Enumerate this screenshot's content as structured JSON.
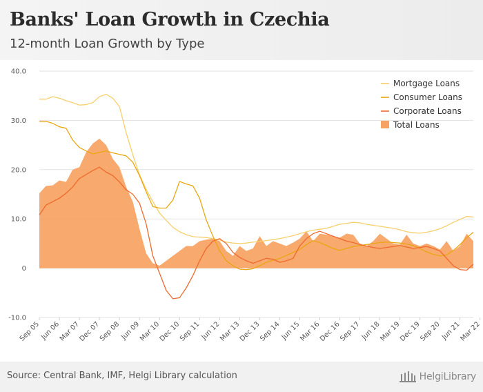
{
  "header": {
    "title": "Banks' Loan Growth in Czechia",
    "subtitle": "12-month Loan Growth by Type"
  },
  "footer": {
    "source": "Source: Central Bank, IMF, Helgi Library calculation",
    "logo_text": "HelgiLibrary",
    "logo_icon": "library-columns-icon"
  },
  "colors": {
    "mortgage": "#f7cf6a",
    "consumer": "#eaa611",
    "corporate": "#ee6a2c",
    "total": "#f6a262",
    "grid": "#e2e2e2",
    "axis_text": "#555555"
  },
  "chart_data": {
    "type": "line",
    "title": "Banks' Loan Growth in Czechia",
    "subtitle": "12-month Loan Growth by Type",
    "xlabel": "",
    "ylabel": "",
    "ylim": [
      -10,
      40
    ],
    "yticks": [
      40,
      30,
      20,
      10,
      0,
      -10
    ],
    "ytick_labels": [
      "40.0",
      "30.0",
      "20.0",
      "10.0",
      "0",
      "-10.0"
    ],
    "grid": true,
    "legend_position": "top-right",
    "x_tick_labels": [
      "Sep 05",
      "Jun 06",
      "Mar 07",
      "Dec 07",
      "Sep 08",
      "Jun 09",
      "Mar 10",
      "Dec 10",
      "Sep 11",
      "Jun 12",
      "Mar 13",
      "Dec 13",
      "Sep 14",
      "Jun 15",
      "Mar 16",
      "Dec 16",
      "Sep 17",
      "Jun 18",
      "Mar 19",
      "Dec 19",
      "Sep 20",
      "Jun 21",
      "Mar 22"
    ],
    "x_step_per_tick": 3,
    "series": [
      {
        "name": "Mortgage Loans",
        "kind": "line",
        "color": "#f7cf6a",
        "values": [
          34.3,
          34.3,
          34.8,
          34.5,
          34.0,
          33.6,
          33.1,
          33.2,
          33.6,
          34.8,
          35.3,
          34.5,
          32.8,
          27.5,
          23.0,
          19.0,
          16.0,
          13.5,
          11.2,
          9.7,
          8.3,
          7.4,
          6.8,
          6.4,
          6.3,
          6.2,
          6.0,
          5.7,
          5.3,
          5.1,
          5.0,
          5.1,
          5.3,
          5.4,
          5.6,
          5.8,
          6.0,
          6.3,
          6.6,
          7.0,
          7.4,
          7.7,
          7.9,
          8.1,
          8.5,
          8.9,
          9.1,
          9.3,
          9.2,
          8.9,
          8.7,
          8.5,
          8.3,
          8.1,
          7.8,
          7.4,
          7.2,
          7.1,
          7.3,
          7.6,
          8.0,
          8.6,
          9.3,
          9.9,
          10.5,
          10.4
        ]
      },
      {
        "name": "Consumer Loans",
        "kind": "line",
        "color": "#eaa611",
        "values": [
          29.8,
          29.8,
          29.4,
          28.7,
          28.4,
          26.0,
          24.5,
          23.8,
          23.2,
          23.5,
          23.8,
          23.4,
          23.1,
          22.8,
          21.5,
          18.8,
          15.5,
          12.5,
          12.2,
          12.2,
          13.8,
          17.6,
          17.1,
          16.7,
          14.2,
          9.8,
          6.5,
          3.5,
          1.5,
          0.5,
          -0.2,
          -0.3,
          -0.1,
          0.5,
          1.2,
          1.6,
          2.0,
          2.6,
          3.2,
          3.8,
          4.8,
          5.6,
          5.2,
          4.6,
          4.0,
          3.6,
          4.0,
          4.4,
          4.6,
          4.8,
          5.0,
          5.2,
          5.3,
          5.2,
          5.1,
          4.9,
          4.6,
          4.0,
          3.3,
          2.8,
          2.5,
          2.7,
          3.6,
          4.8,
          6.2,
          7.3
        ]
      },
      {
        "name": "Corporate Loans",
        "kind": "line",
        "color": "#ee6a2c",
        "values": [
          10.8,
          12.8,
          13.5,
          14.2,
          15.2,
          16.5,
          18.2,
          19.0,
          19.8,
          20.5,
          19.5,
          18.8,
          17.5,
          15.9,
          15.0,
          13.2,
          9.0,
          2.5,
          -1.0,
          -4.5,
          -6.2,
          -6.0,
          -4.0,
          -1.5,
          1.5,
          4.0,
          5.5,
          6.0,
          5.0,
          3.2,
          2.2,
          1.5,
          1.0,
          1.5,
          2.0,
          1.8,
          1.2,
          1.5,
          2.0,
          4.5,
          6.0,
          7.0,
          7.5,
          7.0,
          6.5,
          6.0,
          5.5,
          5.2,
          4.8,
          4.5,
          4.2,
          4.0,
          4.2,
          4.4,
          4.6,
          4.3,
          4.0,
          4.2,
          4.4,
          4.0,
          3.5,
          2.0,
          0.5,
          -0.3,
          -0.4,
          0.8
        ]
      },
      {
        "name": "Total Loans",
        "kind": "area",
        "color": "#f6a262",
        "values": [
          15.2,
          16.7,
          16.8,
          17.8,
          17.5,
          20.0,
          20.5,
          23.5,
          25.3,
          26.3,
          25.0,
          22.2,
          20.5,
          16.5,
          13.5,
          8.0,
          3.0,
          1.0,
          0.5,
          1.5,
          2.5,
          3.5,
          4.5,
          4.5,
          5.5,
          5.8,
          6.0,
          5.5,
          3.5,
          2.5,
          4.5,
          3.5,
          4.0,
          6.5,
          4.5,
          5.5,
          5.0,
          4.5,
          5.2,
          6.0,
          7.5,
          5.5,
          7.0,
          6.8,
          6.5,
          6.2,
          7.0,
          6.8,
          5.0,
          4.5,
          5.5,
          7.0,
          6.0,
          5.0,
          4.8,
          6.8,
          5.0,
          4.5,
          5.0,
          4.5,
          3.8,
          5.5,
          3.5,
          4.5,
          7.0,
          5.5
        ]
      }
    ]
  }
}
